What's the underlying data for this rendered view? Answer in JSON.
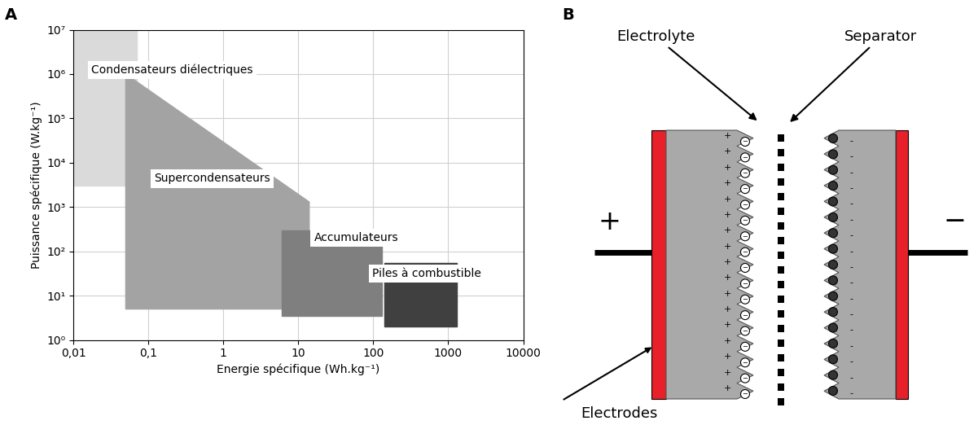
{
  "panel_labels": [
    "A",
    "B"
  ],
  "chart_data": {
    "type": "area",
    "x_label": "Energie spécifique (Wh.kg⁻¹)",
    "y_label": "Puissance spécifique (W.kg⁻¹)",
    "log": true,
    "grid": true,
    "xlim": [
      0.01,
      10000
    ],
    "ylim": [
      1,
      10000000
    ],
    "xticks": [
      {
        "value": 0.01,
        "label": "0,01"
      },
      {
        "value": 0.1,
        "label": "0,1"
      },
      1,
      10,
      100,
      1000,
      10000
    ],
    "yticks": [
      {
        "value": 1,
        "label": "10⁰"
      },
      {
        "value": 10,
        "label": "10¹"
      },
      {
        "value": 100,
        "label": "10²"
      },
      {
        "value": 1000,
        "label": "10³"
      },
      {
        "value": 10000,
        "label": "10⁴"
      },
      {
        "value": 100000,
        "label": "10⁵"
      },
      {
        "value": 1000000,
        "label": "10⁶"
      },
      {
        "value": 10000000,
        "label": "10⁷"
      }
    ],
    "series": [
      {
        "name": "Condensateurs diélectriques",
        "color": "#dadada",
        "x": [
          0.01,
          0.07,
          0.07,
          0.01
        ],
        "values": [
          3000,
          3000,
          10000000,
          10000000
        ]
      },
      {
        "name": "Supercondensateurs",
        "color": "#a3a3a3",
        "x": [
          0.05,
          14,
          14,
          0.05
        ],
        "values": [
          1000000,
          1300,
          5,
          5
        ]
      },
      {
        "name": "Accumulateurs",
        "color": "#7f7f7f",
        "x": [
          6,
          130,
          130,
          6
        ],
        "values": [
          3.5,
          3.5,
          300,
          300
        ]
      },
      {
        "name": "Piles à combustible",
        "color": "#404040",
        "x": [
          140,
          1300,
          1300,
          140
        ],
        "values": [
          2,
          2,
          55,
          55
        ]
      }
    ]
  },
  "diagram": {
    "labels": {
      "electrolyte": "Electrolyte",
      "separator": "Separator",
      "electrodes": "Electrodes"
    },
    "terminals": {
      "positive": "+",
      "negative": "−"
    },
    "charge_signs": {
      "positive": "+",
      "negative": "-"
    },
    "ion_sign": "−"
  }
}
